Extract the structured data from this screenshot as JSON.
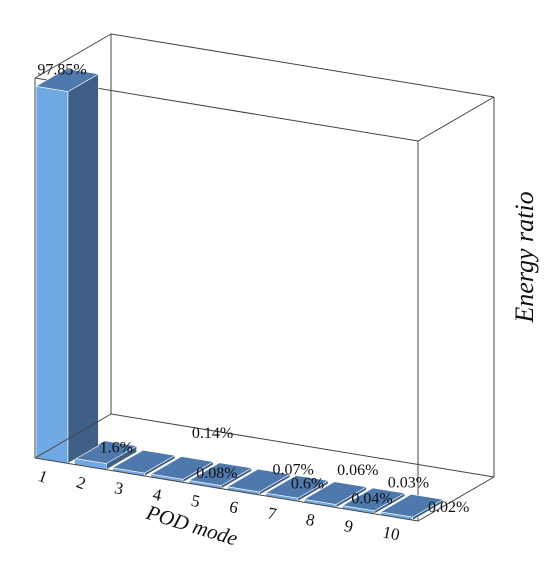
{
  "chart_data": {
    "type": "bar",
    "style": "3d-perspective",
    "categories": [
      "1",
      "2",
      "3",
      "4",
      "5",
      "6",
      "7",
      "8",
      "9",
      "10"
    ],
    "values": [
      97.85,
      1.6,
      0.14,
      0.08,
      0.07,
      0.6,
      0.06,
      0.04,
      0.03,
      0.02
    ],
    "data_labels": [
      "97.85%",
      "1.6%",
      "0.14%",
      "0.08%",
      "0.07%",
      "0.6%",
      "0.06%",
      "0.04%",
      "0.03%",
      "0.02%"
    ],
    "xlabel": "POD mode",
    "ylabel": "Energy ratio",
    "ylim": [
      0,
      100
    ],
    "grid": false,
    "legend": "none",
    "colors": {
      "bar_front": "#6fa8e2",
      "bar_side": "#3f5f87",
      "bar_top": "#4f79ad",
      "frame": "#444444"
    }
  }
}
